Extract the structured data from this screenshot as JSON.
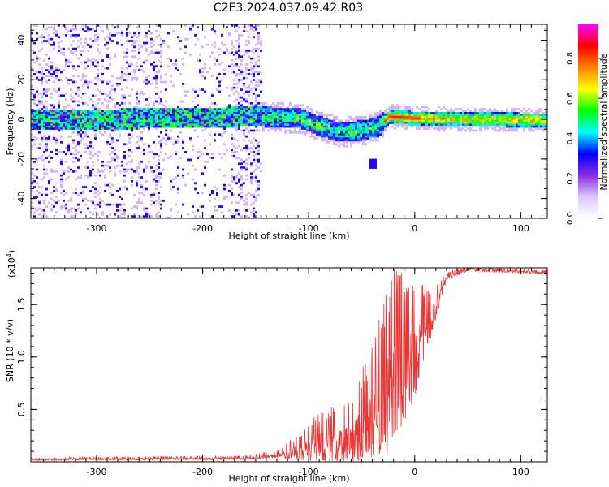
{
  "title": "C2E3.2024.037.09.42.R03",
  "chart_data": [
    {
      "type": "heatmap",
      "xlabel": "Height of straight line (km)",
      "ylabel": "Frequency (Hz)",
      "xlim": [
        -362,
        125
      ],
      "ylim": [
        -50,
        48
      ],
      "xticks": [
        -300,
        -200,
        -100,
        0,
        100
      ],
      "xtick_labels": [
        "-300",
        "-200",
        "-100",
        "0",
        "100"
      ],
      "yticks": [
        -40,
        -20,
        0,
        20,
        40
      ],
      "ytick_labels": [
        "-40",
        "-20",
        "0",
        "20",
        "40"
      ],
      "colorbar": {
        "label": "Normalized spectral amplitude",
        "range": [
          0,
          0.97
        ],
        "ticks": [
          0.0,
          0.2,
          0.4,
          0.6,
          0.8
        ],
        "tick_labels": [
          "0.0",
          "0.2",
          "0.4",
          "0.6",
          "0.8"
        ],
        "colormap": [
          "#ffffff",
          "#dcc6ff",
          "#8a2be2",
          "#0000ff",
          "#00ffff",
          "#00ff00",
          "#ffff00",
          "#ff8000",
          "#ff0000",
          "#ff00ff"
        ]
      },
      "features": {
        "band_center_hz": [
          {
            "x": -362,
            "f": 0
          },
          {
            "x": -240,
            "f": 1
          },
          {
            "x": -150,
            "f": 2
          },
          {
            "x": -110,
            "f": 1
          },
          {
            "x": -90,
            "f": -3
          },
          {
            "x": -70,
            "f": -6
          },
          {
            "x": -50,
            "f": -5
          },
          {
            "x": -35,
            "f": -3
          },
          {
            "x": -25,
            "f": 2
          },
          {
            "x": 0,
            "f": 1
          },
          {
            "x": 125,
            "f": 0
          }
        ],
        "noise_region_km": [
          -362,
          -145
        ],
        "isolated_blob": {
          "x": -40,
          "f": -22
        }
      }
    },
    {
      "type": "line",
      "xlabel": "Height of straight line (km)",
      "ylabel": "SNR (10 * v/v)",
      "scale_label": "(x10",
      "scale_exponent": "4",
      "xlim": [
        -362,
        125
      ],
      "ylim": [
        0,
        1.85
      ],
      "xticks": [
        -300,
        -200,
        -100,
        0,
        100
      ],
      "xtick_labels": [
        "-300",
        "-200",
        "-100",
        "0",
        "100"
      ],
      "yticks": [
        0.5,
        1.0,
        1.5
      ],
      "ytick_labels": [
        "0.5",
        "1.0",
        "1.5"
      ],
      "series": [
        {
          "name": "SNR",
          "color": "#ff3030",
          "envelope": [
            {
              "x": -362,
              "base": 0.02,
              "amp": 0.02
            },
            {
              "x": -160,
              "base": 0.03,
              "amp": 0.03
            },
            {
              "x": -130,
              "base": 0.05,
              "amp": 0.06
            },
            {
              "x": -110,
              "base": 0.08,
              "amp": 0.18
            },
            {
              "x": -90,
              "base": 0.12,
              "amp": 0.35
            },
            {
              "x": -60,
              "base": 0.15,
              "amp": 0.45
            },
            {
              "x": -40,
              "base": 0.25,
              "amp": 0.85
            },
            {
              "x": -20,
              "base": 0.55,
              "amp": 1.25
            },
            {
              "x": 0,
              "base": 0.9,
              "amp": 0.8
            },
            {
              "x": 15,
              "base": 1.3,
              "amp": 0.35
            },
            {
              "x": 30,
              "base": 1.75,
              "amp": 0.06
            },
            {
              "x": 50,
              "base": 1.83,
              "amp": 0.03
            },
            {
              "x": 125,
              "base": 1.8,
              "amp": 0.03
            }
          ]
        }
      ]
    }
  ]
}
